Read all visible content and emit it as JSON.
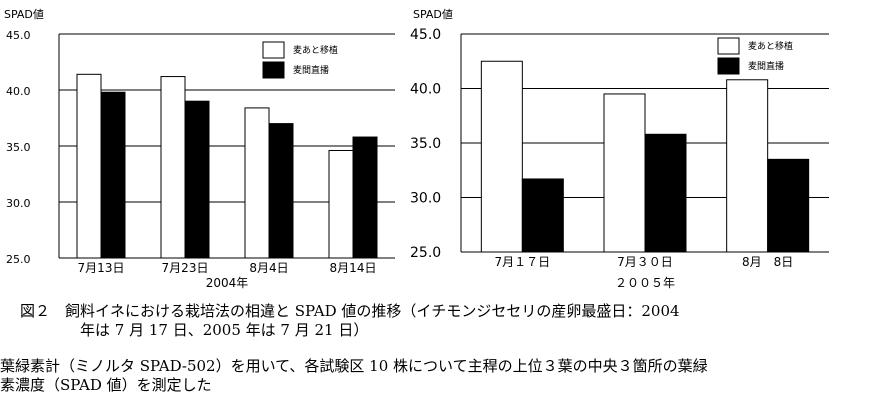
{
  "chart_data": [
    {
      "type": "bar",
      "ylabel": "SPAD値",
      "xlabel": "2004年",
      "ylim": [
        25,
        45
      ],
      "yticks": [
        "25.0",
        "30.0",
        "35.0",
        "40.0",
        "45.0"
      ],
      "grid": true,
      "legend": "top-right",
      "categories": [
        "7月13日",
        "7月23日",
        "8月4日",
        "8月14日"
      ],
      "series": [
        {
          "name": "麦あと移植",
          "color": "#ffffff",
          "values": [
            41.4,
            41.2,
            38.4,
            34.6
          ]
        },
        {
          "name": "麦間直播",
          "color": "#000000",
          "values": [
            39.8,
            39.0,
            37.0,
            35.8
          ]
        }
      ]
    },
    {
      "type": "bar",
      "ylabel": "SPAD値",
      "xlabel": "２００５年",
      "ylim": [
        25,
        45
      ],
      "yticks": [
        "25.0",
        "30.0",
        "35.0",
        "40.0",
        "45.0"
      ],
      "grid": true,
      "legend": "top-right",
      "categories": [
        "7月１７日",
        "7月３０日",
        "8月　8日"
      ],
      "series": [
        {
          "name": "麦あと移植",
          "color": "#ffffff",
          "values": [
            42.5,
            39.5,
            40.8
          ]
        },
        {
          "name": "麦間直播",
          "color": "#000000",
          "values": [
            31.7,
            35.8,
            33.5
          ]
        }
      ]
    }
  ],
  "caption": {
    "line1": "図２　飼料イネにおける栽培法の相違と SPAD 値の推移（イチモンジセセリの産卵最盛日：2004",
    "line2": "年は 7 月 17 日、2005 年は 7 月 21 日）"
  },
  "note": {
    "line1": "葉緑素計（ミノルタ SPAD-502）を用いて、各試験区 10 株について主稈の上位３葉の中央３箇所の葉緑",
    "line2": "素濃度（SPAD 値）を測定した"
  }
}
